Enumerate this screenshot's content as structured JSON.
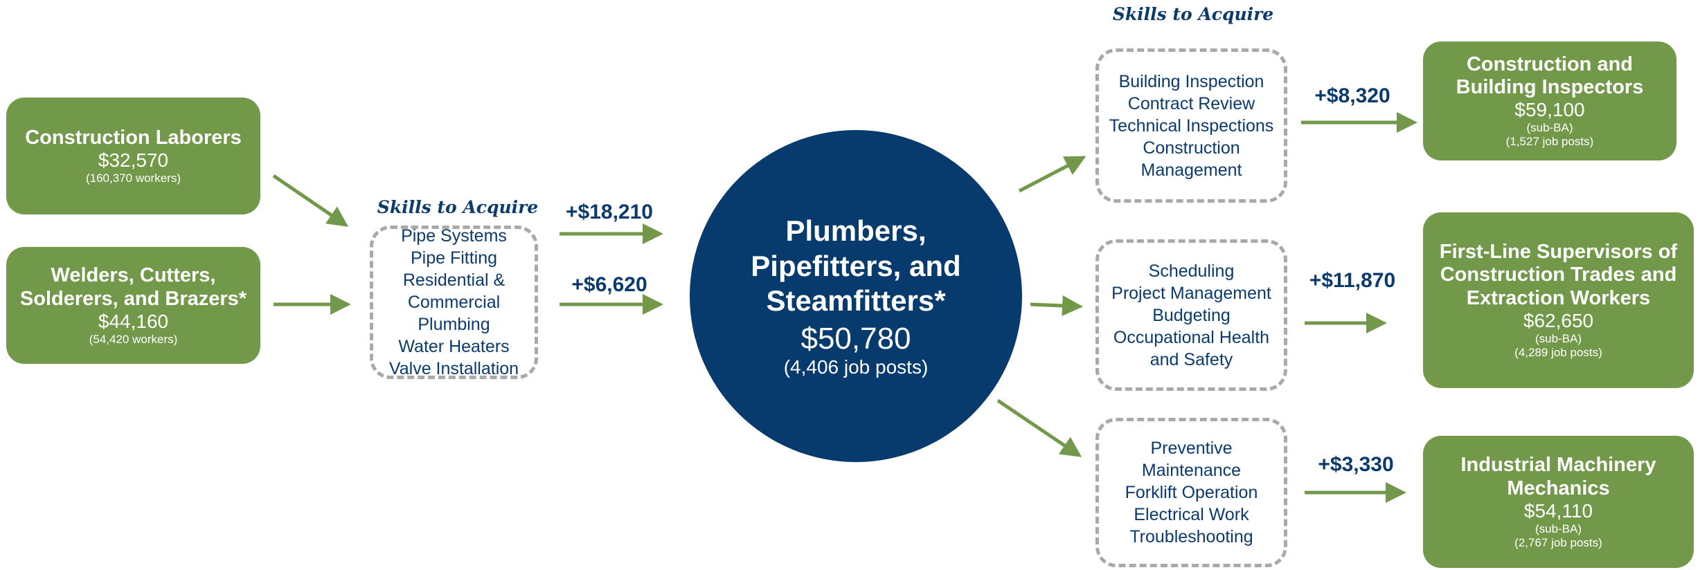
{
  "sources": [
    {
      "title": [
        "Construction Laborers"
      ],
      "salary": "$32,570",
      "count": "(160,370 workers)"
    },
    {
      "title": [
        "Welders, Cutters,",
        "Solderers, and Brazers*"
      ],
      "salary": "$44,160",
      "count": "(54,420 workers)"
    }
  ],
  "left_skills": {
    "heading": "Skills to Acquire",
    "items": [
      "Pipe Systems",
      "Pipe Fitting",
      "Residential &",
      "Commercial Plumbing",
      "Water Heaters",
      "Valve Installation"
    ]
  },
  "gains_in": [
    "+$18,210",
    "+$6,620"
  ],
  "center": {
    "title": [
      "Plumbers,",
      "Pipefitters, and",
      "Steamfitters*"
    ],
    "salary": "$50,780",
    "count": "(4,406 job posts)"
  },
  "right_heading": "Skills to Acquire",
  "paths": [
    {
      "skills": [
        "Building Inspection",
        "Contract Review",
        "Technical Inspections",
        "Construction",
        "Management"
      ],
      "gain": "+$8,320",
      "title": [
        "Construction and",
        "Building Inspectors"
      ],
      "salary": "$59,100",
      "level": "(sub-BA)",
      "count": "(1,527 job posts)"
    },
    {
      "skills": [
        "Scheduling",
        "Project Management",
        "Budgeting",
        "Occupational Health",
        "and Safety"
      ],
      "gain": "+$11,870",
      "title": [
        "First-Line Supervisors of",
        "Construction Trades and",
        "Extraction Workers"
      ],
      "salary": "$62,650",
      "level": "(sub-BA)",
      "count": "(4,289 job posts)"
    },
    {
      "skills": [
        "Preventive",
        "Maintenance",
        "Forklift Operation",
        "Electrical Work",
        "Troubleshooting"
      ],
      "gain": "+$3,330",
      "title": [
        "Industrial Machinery",
        "Mechanics"
      ],
      "salary": "$54,110",
      "level": "(sub-BA)",
      "count": "(2,767 job posts)"
    }
  ]
}
